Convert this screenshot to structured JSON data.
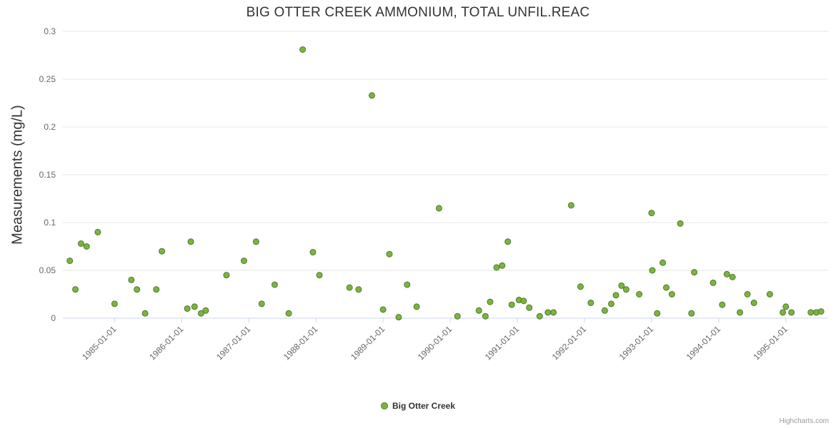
{
  "page": {
    "credits_label": "Highcharts.com"
  },
  "chart_data": {
    "type": "scatter",
    "title": "BIG OTTER CREEK AMMONIUM, TOTAL UNFIL.REAC",
    "xlabel": "",
    "ylabel": "Measurements (mg/L)",
    "ylim": [
      0,
      0.3
    ],
    "xlim_years": [
      1984.23,
      1995.63
    ],
    "y_ticks": [
      0,
      0.05,
      0.1,
      0.15,
      0.2,
      0.25,
      0.3
    ],
    "y_tick_labels": [
      "0",
      "0.05",
      "0.1",
      "0.15",
      "0.2",
      "0.25",
      "0.3"
    ],
    "x_tick_labels": [
      "1985-01-01",
      "1986-01-01",
      "1987-01-01",
      "1988-01-01",
      "1989-01-01",
      "1990-01-01",
      "1991-01-01",
      "1992-01-01",
      "1993-01-01",
      "1994-01-01",
      "1995-01-01"
    ],
    "grid": true,
    "legend_position": "bottom-center",
    "colors": {
      "grid": "#e6e6e6",
      "axis_line": "#ccd6eb",
      "tick_label": "#666666",
      "title": "#333333",
      "marker_fill": "#7cb342",
      "marker_stroke": "#4f7a28"
    },
    "series": [
      {
        "name": "Big Otter Creek",
        "color": "#7cb342",
        "marker_stroke": "#4f7a28",
        "points": [
          [
            "1984-05-01",
            0.06
          ],
          [
            "1984-06-01",
            0.03
          ],
          [
            "1984-07-01",
            0.078
          ],
          [
            "1984-08-01",
            0.075
          ],
          [
            "1984-10-01",
            0.09
          ],
          [
            "1985-01-01",
            0.015
          ],
          [
            "1985-04-01",
            0.04
          ],
          [
            "1985-05-01",
            0.03
          ],
          [
            "1985-06-15",
            0.005
          ],
          [
            "1985-08-15",
            0.03
          ],
          [
            "1985-09-15",
            0.07
          ],
          [
            "1986-02-01",
            0.01
          ],
          [
            "1986-02-20",
            0.08
          ],
          [
            "1986-03-10",
            0.012
          ],
          [
            "1986-04-15",
            0.005
          ],
          [
            "1986-05-10",
            0.008
          ],
          [
            "1986-09-01",
            0.045
          ],
          [
            "1986-12-05",
            0.06
          ],
          [
            "1987-02-10",
            0.08
          ],
          [
            "1987-03-10",
            0.015
          ],
          [
            "1987-05-20",
            0.035
          ],
          [
            "1987-08-05",
            0.005
          ],
          [
            "1987-10-20",
            0.281
          ],
          [
            "1987-12-15",
            0.069
          ],
          [
            "1988-01-20",
            0.045
          ],
          [
            "1988-07-01",
            0.032
          ],
          [
            "1988-08-20",
            0.03
          ],
          [
            "1988-11-01",
            0.233
          ],
          [
            "1989-01-01",
            0.009
          ],
          [
            "1989-02-05",
            0.067
          ],
          [
            "1989-03-25",
            0.001
          ],
          [
            "1989-05-10",
            0.035
          ],
          [
            "1989-07-01",
            0.012
          ],
          [
            "1989-11-01",
            0.115
          ],
          [
            "1990-02-10",
            0.002
          ],
          [
            "1990-06-05",
            0.008
          ],
          [
            "1990-07-10",
            0.002
          ],
          [
            "1990-08-05",
            0.017
          ],
          [
            "1990-09-10",
            0.053
          ],
          [
            "1990-10-10",
            0.055
          ],
          [
            "1990-11-10",
            0.08
          ],
          [
            "1990-12-01",
            0.014
          ],
          [
            "1991-01-10",
            0.019
          ],
          [
            "1991-02-05",
            0.018
          ],
          [
            "1991-03-05",
            0.011
          ],
          [
            "1991-05-01",
            0.002
          ],
          [
            "1991-06-15",
            0.006
          ],
          [
            "1991-07-15",
            0.006
          ],
          [
            "1991-10-20",
            0.118
          ],
          [
            "1991-12-10",
            0.033
          ],
          [
            "1992-02-05",
            0.016
          ],
          [
            "1992-04-20",
            0.008
          ],
          [
            "1992-05-25",
            0.015
          ],
          [
            "1992-06-20",
            0.024
          ],
          [
            "1992-07-20",
            0.034
          ],
          [
            "1992-08-15",
            0.03
          ],
          [
            "1992-10-25",
            0.025
          ],
          [
            "1993-01-01",
            0.11
          ],
          [
            "1993-01-05",
            0.05
          ],
          [
            "1993-02-01",
            0.005
          ],
          [
            "1993-03-01",
            0.058
          ],
          [
            "1993-03-20",
            0.032
          ],
          [
            "1993-04-20",
            0.025
          ],
          [
            "1993-06-05",
            0.099
          ],
          [
            "1993-08-05",
            0.005
          ],
          [
            "1993-08-20",
            0.048
          ],
          [
            "1993-12-01",
            0.037
          ],
          [
            "1994-01-20",
            0.014
          ],
          [
            "1994-02-15",
            0.046
          ],
          [
            "1994-03-15",
            0.043
          ],
          [
            "1994-04-25",
            0.006
          ],
          [
            "1994-06-05",
            0.025
          ],
          [
            "1994-07-10",
            0.016
          ],
          [
            "1994-10-05",
            0.025
          ],
          [
            "1994-12-15",
            0.006
          ],
          [
            "1995-01-01",
            0.012
          ],
          [
            "1995-02-01",
            0.006
          ],
          [
            "1995-05-15",
            0.006
          ],
          [
            "1995-06-15",
            0.006
          ],
          [
            "1995-07-10",
            0.007
          ]
        ]
      }
    ]
  }
}
